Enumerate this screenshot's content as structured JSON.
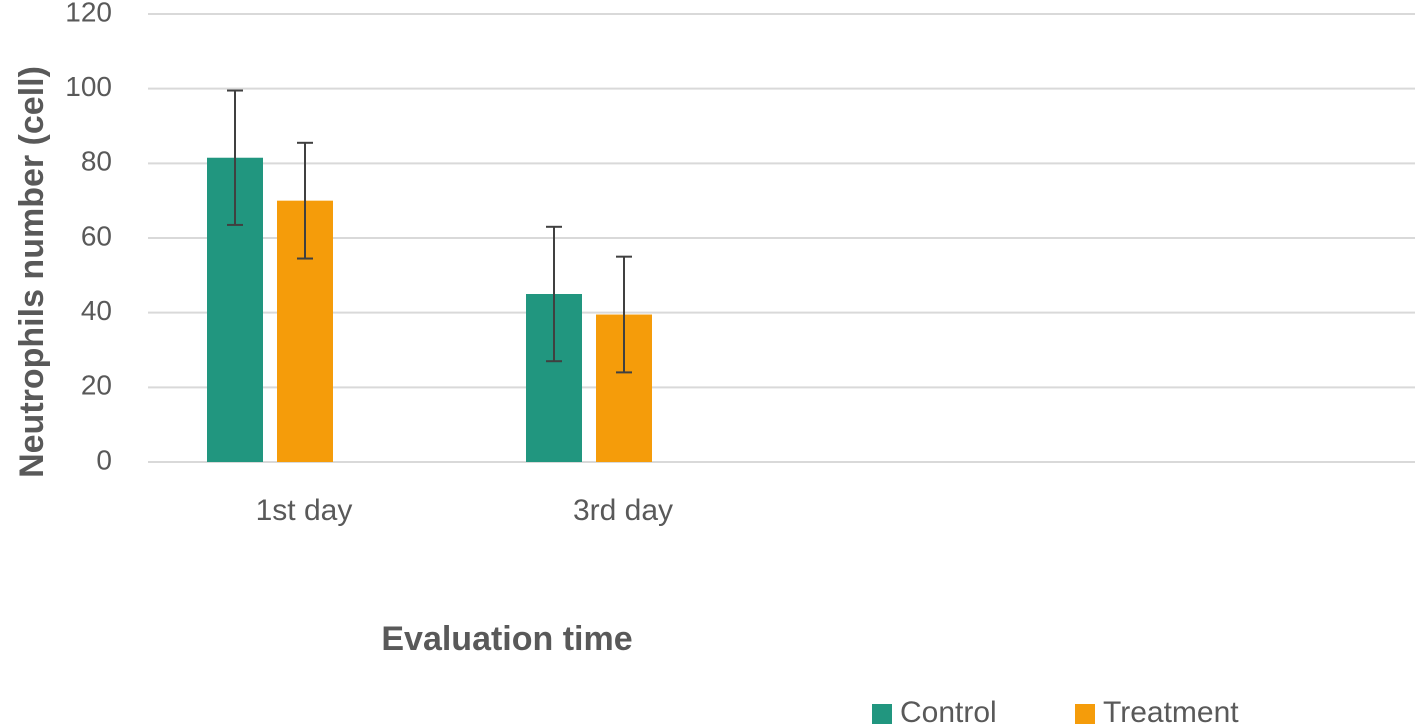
{
  "chart_data": {
    "type": "bar",
    "title": "",
    "xlabel": "Evaluation time",
    "ylabel": "Neutrophils number (cell)",
    "categories": [
      "1st day",
      "3rd day"
    ],
    "series": [
      {
        "name": "Control",
        "color": "#21967F",
        "values": [
          81.5,
          45
        ],
        "error": [
          18,
          18
        ]
      },
      {
        "name": "Treatment",
        "color": "#F59C0A",
        "values": [
          70,
          39.5
        ],
        "error": [
          15.5,
          15.5
        ]
      }
    ],
    "ylim": [
      0,
      120
    ],
    "yticks": [
      0,
      20,
      40,
      60,
      80,
      100,
      120
    ],
    "grid": true,
    "legend_position": "bottom-right"
  }
}
